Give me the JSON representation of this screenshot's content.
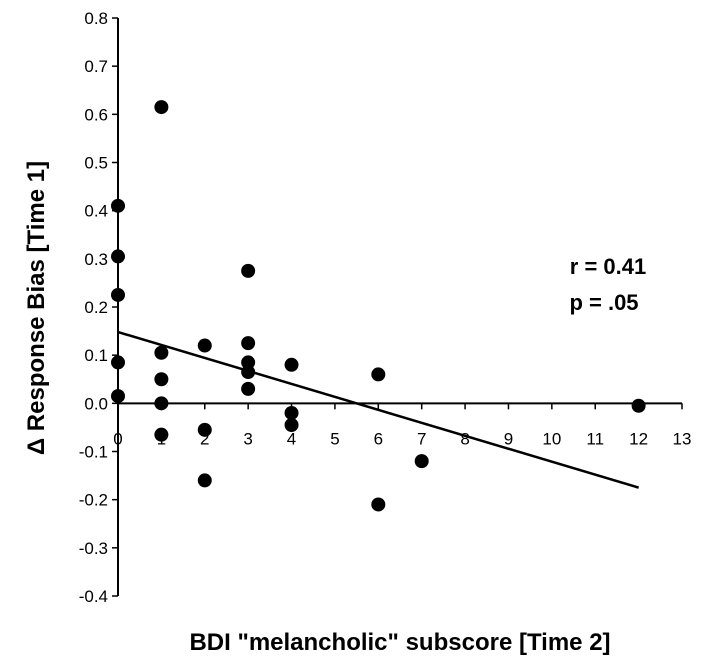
{
  "chart_data": {
    "type": "scatter",
    "title": "",
    "xlabel": "BDI \"melancholic\" subscore [Time 2]",
    "ylabel": "Δ Response Bias [Time 1]",
    "xlim": [
      0,
      13
    ],
    "ylim": [
      -0.4,
      0.8
    ],
    "x_ticks": [
      "0",
      "1",
      "2",
      "3",
      "4",
      "5",
      "6",
      "7",
      "8",
      "9",
      "10",
      "11",
      "12",
      "13"
    ],
    "y_ticks": [
      "0.8",
      "0.7",
      "0.6",
      "0.5",
      "0.4",
      "0.3",
      "0.2",
      "0.1",
      "0.0",
      "-0.1",
      "-0.2",
      "-0.3",
      "-0.4"
    ],
    "grid": false,
    "points": [
      {
        "x": 0,
        "y": 0.41
      },
      {
        "x": 0,
        "y": 0.305
      },
      {
        "x": 0,
        "y": 0.225
      },
      {
        "x": 0,
        "y": 0.085
      },
      {
        "x": 0,
        "y": 0.015
      },
      {
        "x": 1,
        "y": 0.615
      },
      {
        "x": 1,
        "y": 0.105
      },
      {
        "x": 1,
        "y": 0.05
      },
      {
        "x": 1,
        "y": 0.0
      },
      {
        "x": 1,
        "y": -0.065
      },
      {
        "x": 2,
        "y": 0.12
      },
      {
        "x": 2,
        "y": -0.055
      },
      {
        "x": 2,
        "y": -0.16
      },
      {
        "x": 3,
        "y": 0.275
      },
      {
        "x": 3,
        "y": 0.125
      },
      {
        "x": 3,
        "y": 0.085
      },
      {
        "x": 3,
        "y": 0.065
      },
      {
        "x": 3,
        "y": 0.03
      },
      {
        "x": 4,
        "y": 0.08
      },
      {
        "x": 4,
        "y": -0.02
      },
      {
        "x": 4,
        "y": -0.045
      },
      {
        "x": 6,
        "y": 0.06
      },
      {
        "x": 6,
        "y": -0.21
      },
      {
        "x": 7,
        "y": -0.12
      },
      {
        "x": 12,
        "y": -0.005
      }
    ],
    "trendline": {
      "x": [
        0,
        12
      ],
      "y": [
        0.148,
        -0.175
      ]
    },
    "annotations": [
      "r = 0.41",
      "p = .05"
    ],
    "color": "#000000"
  }
}
